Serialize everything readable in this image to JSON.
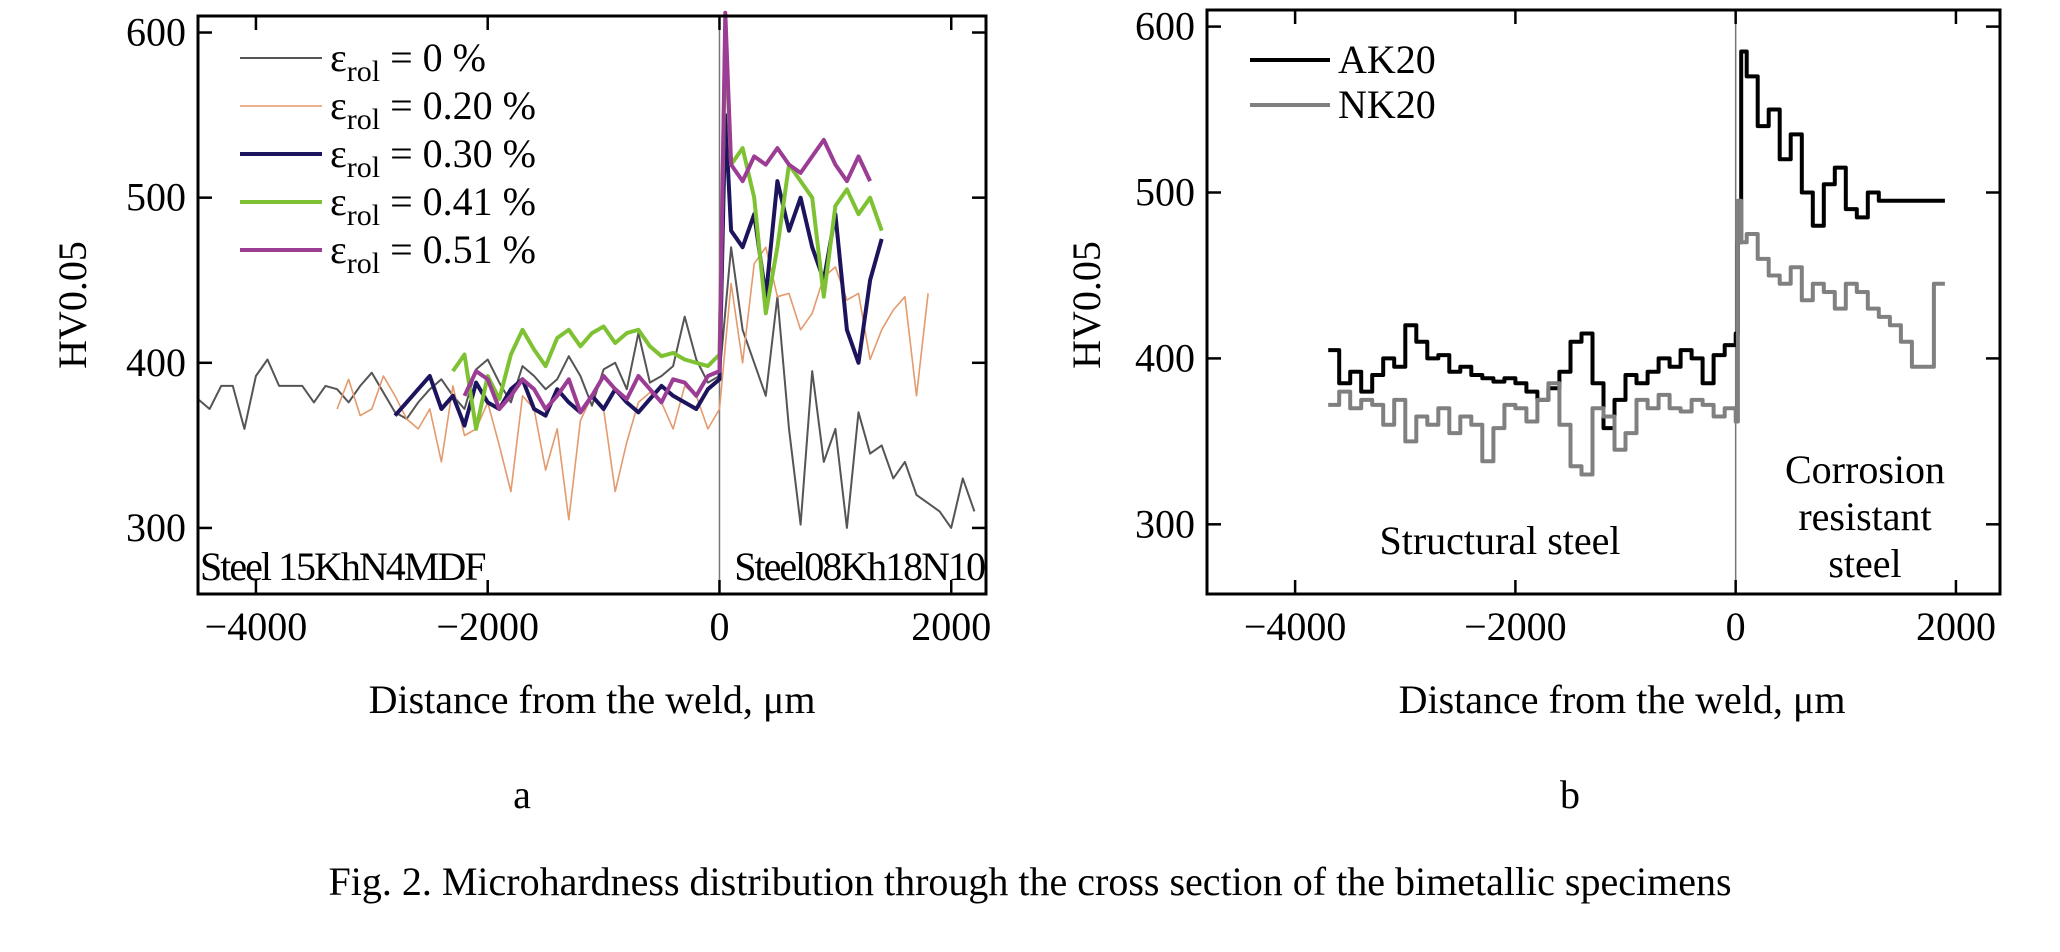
{
  "chart_data": [
    {
      "type": "line",
      "panel": "a",
      "xlabel": "Distance from the weld, μm",
      "ylabel": "HV0.05",
      "xlim": [
        -4500,
        2300
      ],
      "ylim": [
        260,
        610
      ],
      "x_ticks": [
        "−4000",
        "−2000",
        "0",
        "2000"
      ],
      "x_tick_values": [
        -4000,
        -2000,
        0,
        2000
      ],
      "y_ticks": [
        "300",
        "400",
        "500",
        "600"
      ],
      "y_tick_values": [
        300,
        400,
        500,
        600
      ],
      "grid": false,
      "legend_position": "top-left",
      "annotations": [
        "Steel 15KhN4MDF",
        "Steel08Kh18N10"
      ],
      "series": [
        {
          "name": "ε",
          "legend_sub": "rol",
          "legend_rest": " = 0 %",
          "color": "#555555",
          "x": [
            -4500,
            -4400,
            -4300,
            -4200,
            -4100,
            -4000,
            -3900,
            -3800,
            -3700,
            -3600,
            -3500,
            -3400,
            -3300,
            -3200,
            -3100,
            -3000,
            -2900,
            -2800,
            -2700,
            -2600,
            -2500,
            -2400,
            -2300,
            -2200,
            -2100,
            -2000,
            -1900,
            -1800,
            -1700,
            -1600,
            -1500,
            -1400,
            -1300,
            -1200,
            -1100,
            -1000,
            -900,
            -800,
            -700,
            -600,
            -500,
            -400,
            -300,
            -200,
            -100,
            0,
            100,
            200,
            300,
            400,
            500,
            600,
            700,
            800,
            900,
            1000,
            1100,
            1200,
            1300,
            1400,
            1500,
            1600,
            1700,
            1800,
            1900,
            2000,
            2100,
            2200
          ],
          "y": [
            378,
            372,
            386,
            386,
            360,
            392,
            402,
            386,
            386,
            386,
            376,
            386,
            384,
            376,
            386,
            394,
            382,
            370,
            366,
            376,
            384,
            390,
            380,
            372,
            396,
            402,
            388,
            376,
            398,
            392,
            384,
            390,
            404,
            392,
            374,
            396,
            400,
            384,
            418,
            388,
            392,
            398,
            428,
            402,
            388,
            392,
            470,
            420,
            400,
            380,
            440,
            360,
            302,
            395,
            340,
            360,
            300,
            370,
            345,
            350,
            330,
            340,
            320,
            315,
            310,
            300,
            330,
            310
          ]
        },
        {
          "name": "ε",
          "legend_sub": "rol",
          "legend_rest": " = 0.20 %",
          "color": "#e39a6d",
          "x": [
            -3300,
            -3200,
            -3100,
            -3000,
            -2900,
            -2800,
            -2700,
            -2600,
            -2500,
            -2400,
            -2300,
            -2200,
            -2100,
            -2000,
            -1900,
            -1800,
            -1700,
            -1600,
            -1500,
            -1400,
            -1300,
            -1200,
            -1100,
            -1000,
            -900,
            -800,
            -700,
            -600,
            -500,
            -400,
            -300,
            -200,
            -100,
            0,
            100,
            200,
            300,
            400,
            500,
            600,
            700,
            800,
            900,
            1000,
            1100,
            1200,
            1300,
            1400,
            1500,
            1600,
            1700,
            1800
          ],
          "y": [
            372,
            390,
            368,
            372,
            392,
            380,
            366,
            360,
            372,
            340,
            386,
            356,
            360,
            376,
            350,
            322,
            380,
            372,
            335,
            360,
            305,
            365,
            380,
            372,
            322,
            352,
            376,
            382,
            376,
            360,
            386,
            380,
            360,
            372,
            448,
            400,
            460,
            470,
            440,
            442,
            420,
            430,
            452,
            458,
            438,
            442,
            402,
            420,
            432,
            440,
            380,
            442
          ]
        },
        {
          "name": "ε",
          "legend_sub": "rol",
          "legend_rest": " = 0.30 %",
          "color": "#1c145c",
          "x": [
            -2800,
            -2700,
            -2600,
            -2500,
            -2400,
            -2300,
            -2200,
            -2100,
            -2000,
            -1900,
            -1800,
            -1700,
            -1600,
            -1500,
            -1400,
            -1300,
            -1200,
            -1100,
            -1000,
            -900,
            -800,
            -700,
            -600,
            -500,
            -400,
            -300,
            -200,
            -100,
            0,
            50,
            100,
            200,
            300,
            400,
            500,
            600,
            700,
            800,
            900,
            1000,
            1100,
            1200,
            1300,
            1400
          ],
          "y": [
            368,
            376,
            384,
            392,
            372,
            380,
            362,
            388,
            376,
            372,
            384,
            390,
            372,
            368,
            384,
            376,
            370,
            380,
            372,
            384,
            376,
            370,
            378,
            386,
            380,
            376,
            372,
            384,
            390,
            550,
            480,
            470,
            490,
            440,
            510,
            480,
            500,
            470,
            450,
            490,
            420,
            400,
            450,
            475
          ]
        },
        {
          "name": "ε",
          "legend_sub": "rol",
          "legend_rest": " = 0.41 %",
          "color": "#7ec233",
          "x": [
            -2300,
            -2200,
            -2100,
            -2000,
            -1900,
            -1800,
            -1700,
            -1600,
            -1500,
            -1400,
            -1300,
            -1200,
            -1100,
            -1000,
            -900,
            -800,
            -700,
            -600,
            -500,
            -400,
            -300,
            -200,
            -100,
            0,
            50,
            100,
            200,
            300,
            400,
            500,
            600,
            700,
            800,
            900,
            1000,
            1100,
            1200,
            1300,
            1400
          ],
          "y": [
            395,
            405,
            360,
            392,
            378,
            405,
            420,
            408,
            398,
            415,
            420,
            410,
            418,
            422,
            412,
            418,
            420,
            410,
            404,
            406,
            402,
            400,
            398,
            405,
            600,
            520,
            530,
            500,
            430,
            470,
            520,
            510,
            500,
            440,
            495,
            505,
            490,
            500,
            480
          ]
        },
        {
          "name": "ε",
          "legend_sub": "rol",
          "legend_rest": " = 0.51 %",
          "color": "#9b3d94",
          "x": [
            -2200,
            -2100,
            -2000,
            -1900,
            -1800,
            -1700,
            -1600,
            -1500,
            -1400,
            -1300,
            -1200,
            -1100,
            -1000,
            -900,
            -800,
            -700,
            -600,
            -500,
            -400,
            -300,
            -200,
            -100,
            0,
            50,
            100,
            200,
            300,
            400,
            500,
            600,
            700,
            800,
            900,
            1000,
            1100,
            1200,
            1300
          ],
          "y": [
            380,
            395,
            390,
            372,
            380,
            390,
            384,
            372,
            380,
            390,
            370,
            380,
            392,
            384,
            378,
            392,
            384,
            376,
            390,
            388,
            380,
            392,
            395,
            612,
            520,
            510,
            525,
            520,
            530,
            520,
            515,
            525,
            535,
            520,
            510,
            525,
            510
          ]
        }
      ]
    },
    {
      "type": "line",
      "panel": "b",
      "xlabel": "Distance from the weld, μm",
      "ylabel": "HV0.05",
      "xlim": [
        -4800,
        2400
      ],
      "ylim": [
        258,
        610
      ],
      "x_ticks": [
        "−4000",
        "−2000",
        "0",
        "2000"
      ],
      "x_tick_values": [
        -4000,
        -2000,
        0,
        2000
      ],
      "y_ticks": [
        "300",
        "400",
        "500",
        "600"
      ],
      "y_tick_values": [
        300,
        400,
        500,
        600
      ],
      "grid": false,
      "legend_position": "top-left",
      "annotations": [
        "Structural steel",
        "Corrosion",
        "resistant",
        "steel"
      ],
      "series": [
        {
          "name": "AK20",
          "color": "#000000",
          "x": [
            -3700,
            -3600,
            -3500,
            -3400,
            -3300,
            -3200,
            -3100,
            -3000,
            -2900,
            -2800,
            -2700,
            -2600,
            -2500,
            -2400,
            -2300,
            -2200,
            -2100,
            -2000,
            -1900,
            -1800,
            -1700,
            -1600,
            -1500,
            -1400,
            -1300,
            -1200,
            -1100,
            -1000,
            -900,
            -800,
            -700,
            -600,
            -500,
            -400,
            -300,
            -200,
            -100,
            0,
            20,
            50,
            100,
            200,
            300,
            400,
            500,
            600,
            700,
            800,
            900,
            1000,
            1100,
            1200,
            1300,
            1400,
            1500,
            1600,
            1700,
            1800,
            1900
          ],
          "y": [
            405,
            385,
            392,
            380,
            390,
            400,
            395,
            420,
            410,
            400,
            402,
            392,
            395,
            390,
            388,
            386,
            388,
            385,
            380,
            375,
            382,
            392,
            410,
            415,
            385,
            358,
            375,
            390,
            385,
            392,
            400,
            395,
            405,
            400,
            385,
            402,
            408,
            415,
            470,
            585,
            570,
            540,
            550,
            520,
            535,
            500,
            480,
            505,
            515,
            490,
            485,
            500,
            495,
            495,
            495,
            495,
            495,
            495,
            495
          ]
        },
        {
          "name": "NK20",
          "color": "#808080",
          "x": [
            -3700,
            -3600,
            -3500,
            -3400,
            -3300,
            -3200,
            -3100,
            -3000,
            -2900,
            -2800,
            -2700,
            -2600,
            -2500,
            -2400,
            -2300,
            -2200,
            -2100,
            -2000,
            -1900,
            -1800,
            -1700,
            -1600,
            -1500,
            -1400,
            -1300,
            -1200,
            -1100,
            -1000,
            -900,
            -800,
            -700,
            -600,
            -500,
            -400,
            -300,
            -200,
            -100,
            0,
            20,
            50,
            100,
            200,
            300,
            400,
            500,
            600,
            700,
            800,
            900,
            1000,
            1100,
            1200,
            1300,
            1400,
            1500,
            1600,
            1700,
            1800,
            1900
          ],
          "y": [
            372,
            380,
            370,
            375,
            372,
            360,
            375,
            350,
            365,
            360,
            370,
            355,
            365,
            360,
            338,
            358,
            372,
            370,
            362,
            375,
            385,
            360,
            335,
            330,
            370,
            365,
            345,
            355,
            375,
            370,
            378,
            370,
            368,
            375,
            372,
            365,
            370,
            362,
            495,
            470,
            475,
            460,
            450,
            445,
            455,
            435,
            445,
            440,
            430,
            445,
            440,
            430,
            425,
            420,
            410,
            395,
            395,
            445,
            445
          ]
        }
      ]
    }
  ],
  "labels": {
    "panel_a": "a",
    "panel_b": "b",
    "caption": "Fig. 2. Microhardness distribution through the cross section of the bimetallic specimens"
  }
}
